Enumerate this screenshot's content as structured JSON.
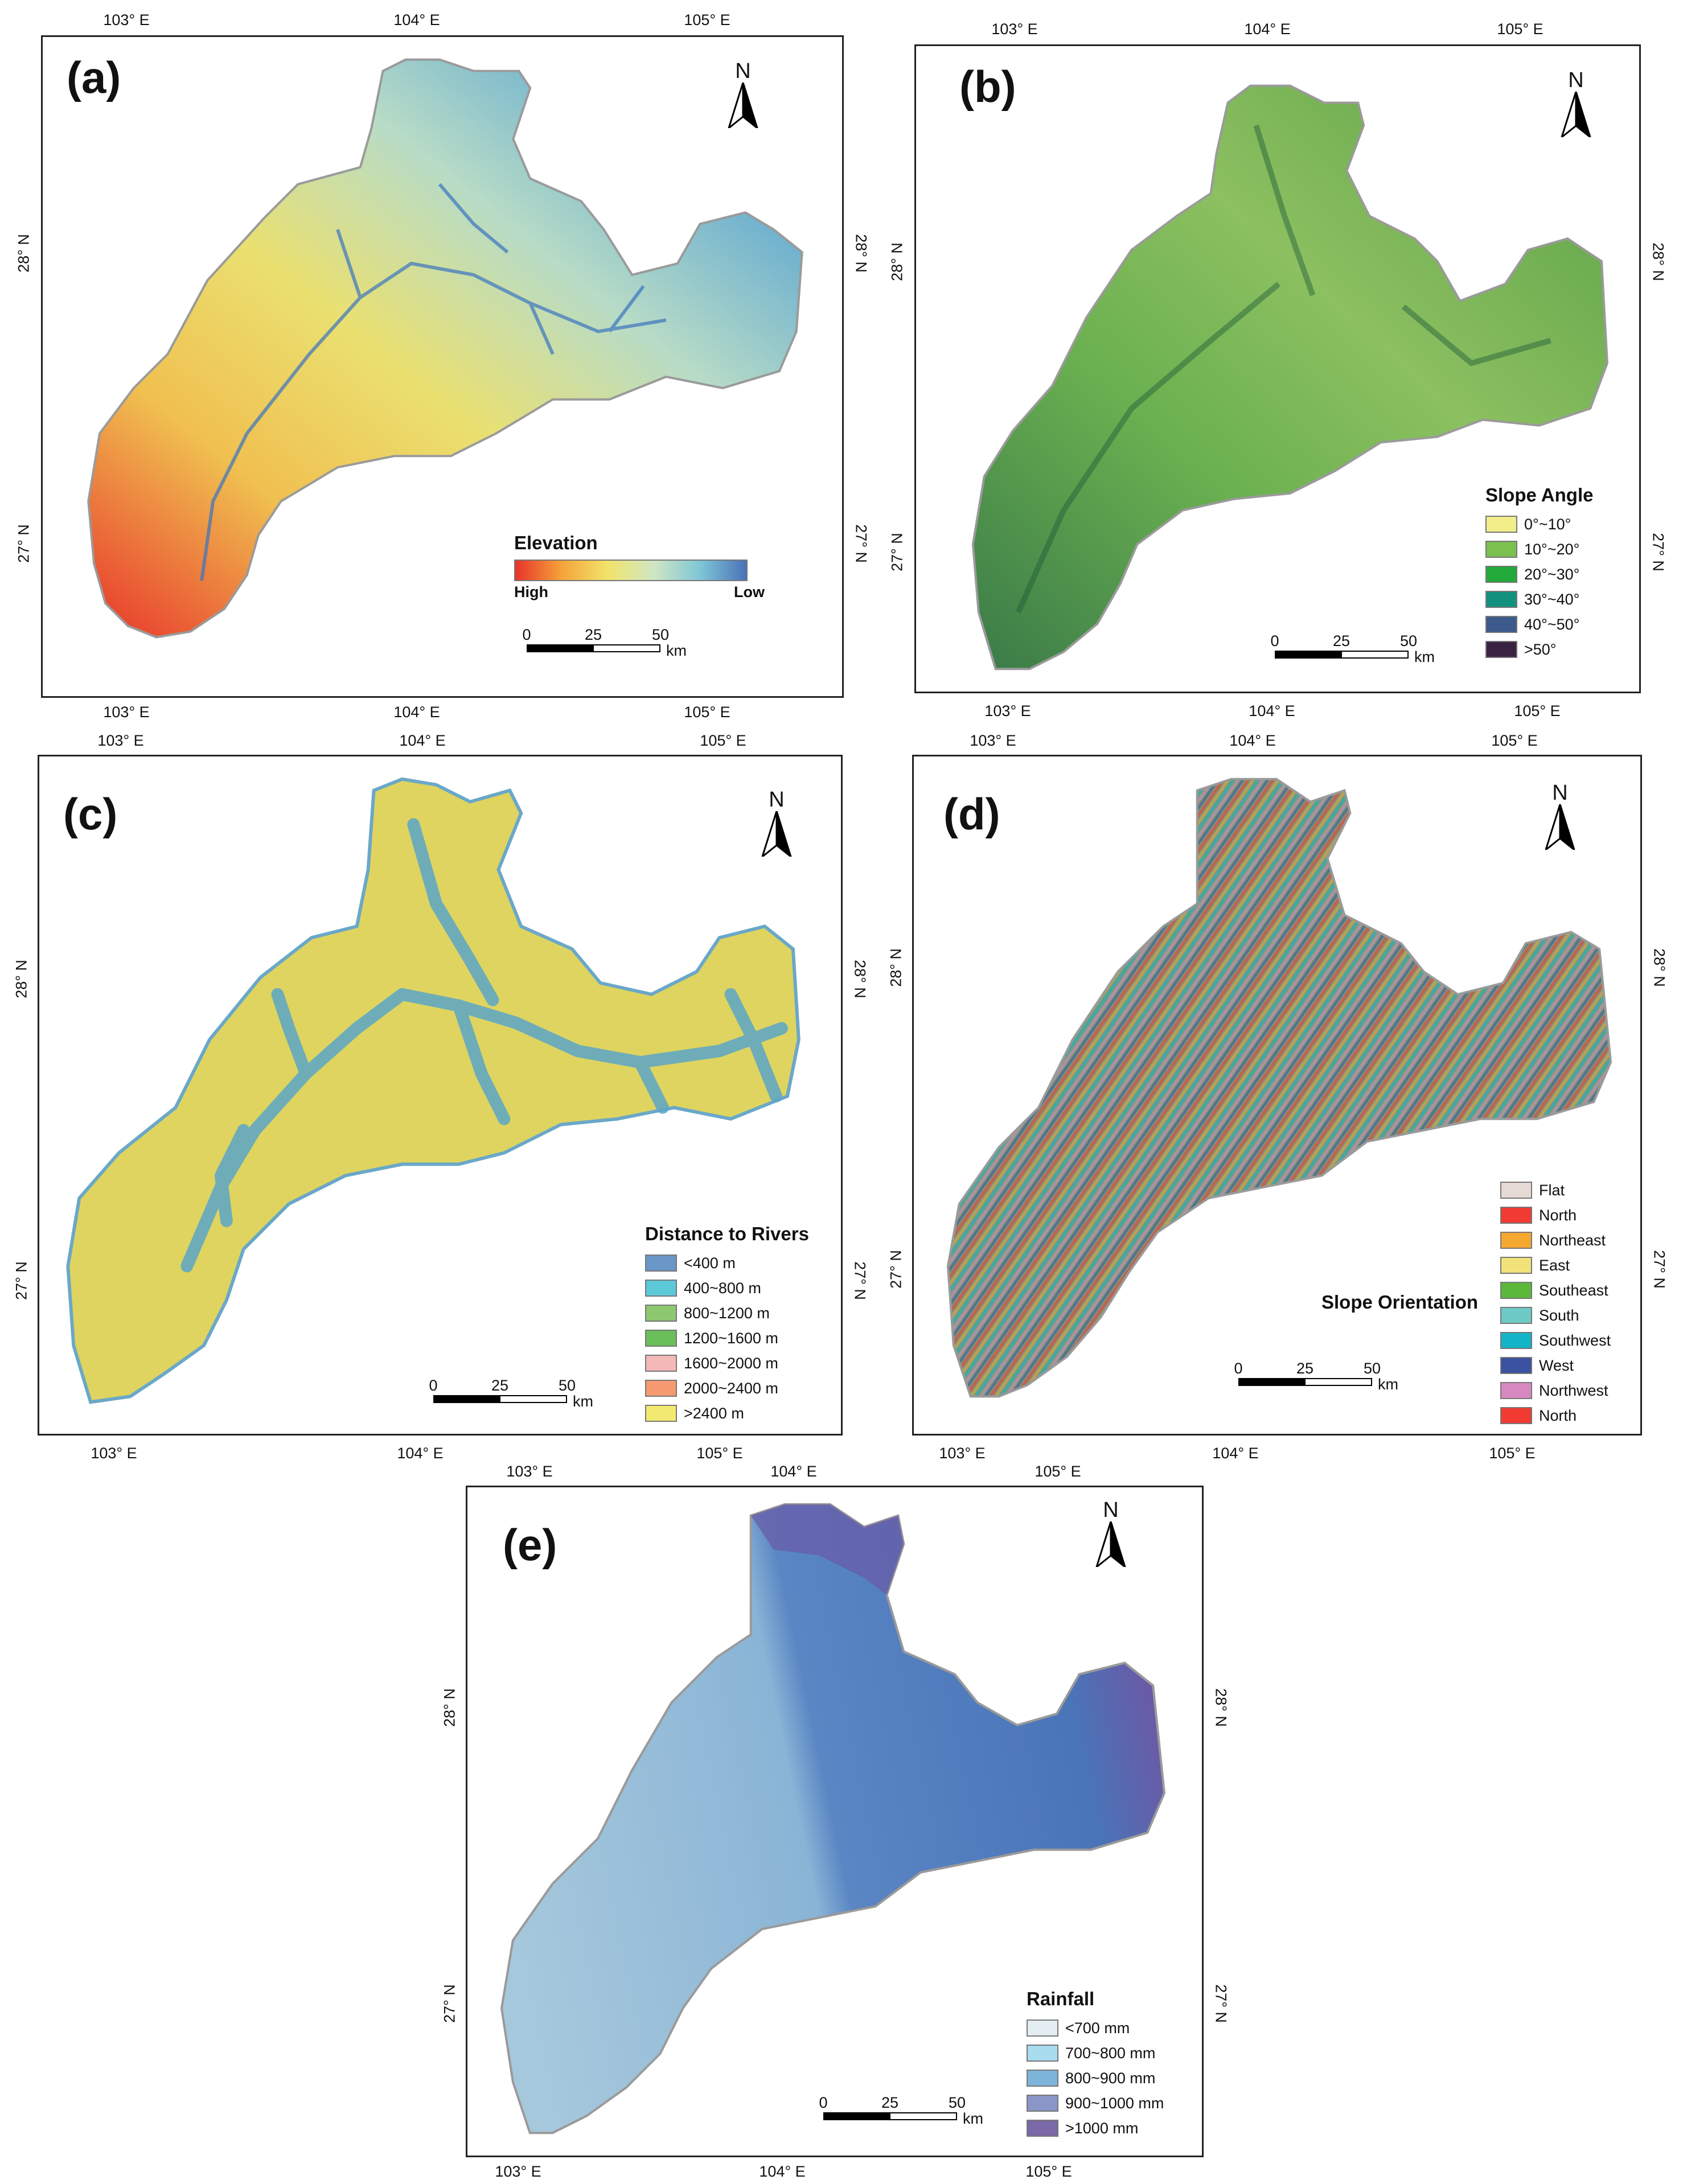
{
  "lon_labels": [
    "103° E",
    "104° E",
    "105° E"
  ],
  "lat_labels": [
    "28° N",
    "27° N"
  ],
  "north_label": "N",
  "scale": {
    "ticks": [
      "0",
      "25",
      "50"
    ],
    "unit": "km"
  },
  "colors": {
    "map_outline": "#9a9a9a",
    "frame": "#222222"
  },
  "panels": [
    {
      "id": "a",
      "label": "(a)",
      "legend_type": "gradient",
      "legend": {
        "title": "Elevation",
        "high_label": "High",
        "low_label": "Low",
        "colors": [
          "#e8332a",
          "#f4a33a",
          "#f2e46a",
          "#cfe6c4",
          "#7fc6d6",
          "#4a72b8"
        ]
      }
    },
    {
      "id": "b",
      "label": "(b)",
      "legend_type": "classes",
      "legend": {
        "title": "Slope Angle",
        "items": [
          {
            "label": "0°~10°",
            "color": "#f2ee8a"
          },
          {
            "label": "10°~20°",
            "color": "#7cc050"
          },
          {
            "label": "20°~30°",
            "color": "#22aa3a"
          },
          {
            "label": "30°~40°",
            "color": "#12917e"
          },
          {
            "label": "40°~50°",
            "color": "#3c5a8c"
          },
          {
            "label": ">50°",
            "color": "#3a2342"
          }
        ]
      }
    },
    {
      "id": "c",
      "label": "(c)",
      "legend_type": "classes",
      "legend": {
        "title": "Distance to Rivers",
        "items": [
          {
            "label": "<400 m",
            "color": "#6a96c8"
          },
          {
            "label": "400~800 m",
            "color": "#5cc8d8"
          },
          {
            "label": "800~1200 m",
            "color": "#8cc870"
          },
          {
            "label": "1200~1600 m",
            "color": "#6abf5a"
          },
          {
            "label": "1600~2000 m",
            "color": "#f5b8b8"
          },
          {
            "label": "2000~2400 m",
            "color": "#f59a70"
          },
          {
            "label": ">2400 m",
            "color": "#f2ea70"
          }
        ]
      }
    },
    {
      "id": "d",
      "label": "(d)",
      "legend_type": "classes",
      "legend": {
        "title": "Slope Orientation",
        "items": [
          {
            "label": "Flat",
            "color": "#e6dad4"
          },
          {
            "label": "North",
            "color": "#f03a32"
          },
          {
            "label": "Northeast",
            "color": "#f5a830"
          },
          {
            "label": "East",
            "color": "#f2e27a"
          },
          {
            "label": "Southeast",
            "color": "#5ab83a"
          },
          {
            "label": "South",
            "color": "#6ecac6"
          },
          {
            "label": "Southwest",
            "color": "#12b4c8"
          },
          {
            "label": "West",
            "color": "#3a52a0"
          },
          {
            "label": "Northwest",
            "color": "#d888c0"
          },
          {
            "label": "North",
            "color": "#f03a32"
          }
        ]
      }
    },
    {
      "id": "e",
      "label": "(e)",
      "legend_type": "classes",
      "legend": {
        "title": "Rainfall",
        "items": [
          {
            "label": "<700 mm",
            "color": "#e4eef2"
          },
          {
            "label": "700~800 mm",
            "color": "#a8dcee"
          },
          {
            "label": "800~900 mm",
            "color": "#7cb4da"
          },
          {
            "label": "900~1000 mm",
            "color": "#8a96c8"
          },
          {
            "label": ">1000 mm",
            "color": "#7a68a8"
          }
        ]
      }
    }
  ]
}
